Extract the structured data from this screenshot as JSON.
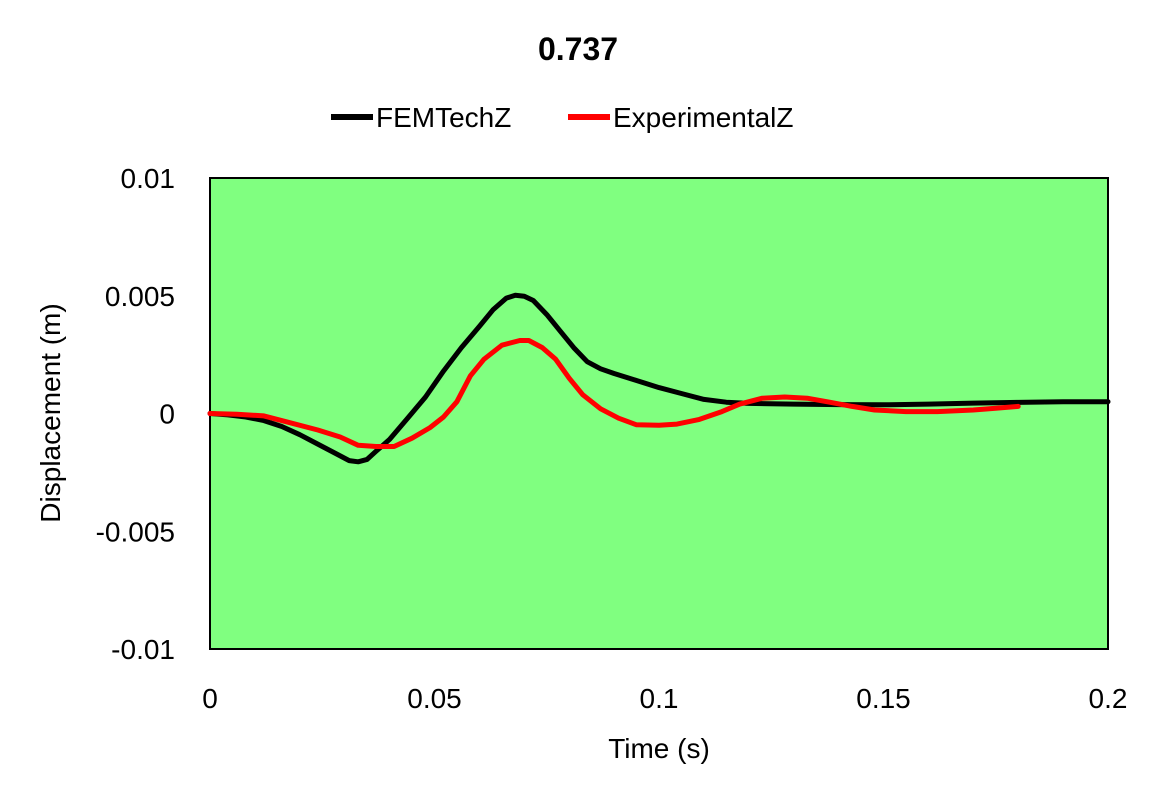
{
  "chart_data": {
    "type": "line",
    "title": "0.737",
    "xlabel": "Time (s)",
    "ylabel": "Displacement (m)",
    "xlim": [
      0,
      0.2
    ],
    "ylim": [
      -0.01,
      0.01
    ],
    "x_ticks": [
      "0",
      "0.05",
      "0.1",
      "0.15",
      "0.2"
    ],
    "y_ticks": [
      "0.01",
      "0.005",
      "0",
      "-0.005",
      "-0.01"
    ],
    "x_tick_values": [
      0,
      0.05,
      0.1,
      0.15,
      0.2
    ],
    "y_tick_values": [
      0.01,
      0.005,
      0,
      -0.005,
      -0.01
    ],
    "grid": false,
    "legend_position": "top",
    "plot_background": "#80ff80",
    "series": [
      {
        "name": "FEMTechZ",
        "color": "#000000",
        "points": [
          [
            0,
            0
          ],
          [
            0.004,
            -6e-05
          ],
          [
            0.008,
            -0.00015
          ],
          [
            0.012,
            -0.0003
          ],
          [
            0.016,
            -0.00055
          ],
          [
            0.02,
            -0.0009
          ],
          [
            0.024,
            -0.0013
          ],
          [
            0.028,
            -0.0017
          ],
          [
            0.031,
            -0.002
          ],
          [
            0.033,
            -0.00205
          ],
          [
            0.035,
            -0.00195
          ],
          [
            0.037,
            -0.0016
          ],
          [
            0.04,
            -0.0011
          ],
          [
            0.044,
            -0.0002
          ],
          [
            0.048,
            0.0007
          ],
          [
            0.052,
            0.0018
          ],
          [
            0.056,
            0.0028
          ],
          [
            0.06,
            0.0037
          ],
          [
            0.063,
            0.0044
          ],
          [
            0.066,
            0.0049
          ],
          [
            0.068,
            0.00502
          ],
          [
            0.07,
            0.00498
          ],
          [
            0.072,
            0.0048
          ],
          [
            0.075,
            0.0042
          ],
          [
            0.078,
            0.0035
          ],
          [
            0.081,
            0.0028
          ],
          [
            0.084,
            0.0022
          ],
          [
            0.087,
            0.0019
          ],
          [
            0.09,
            0.0017
          ],
          [
            0.095,
            0.0014
          ],
          [
            0.1,
            0.0011
          ],
          [
            0.105,
            0.00085
          ],
          [
            0.11,
            0.0006
          ],
          [
            0.115,
            0.00048
          ],
          [
            0.12,
            0.00043
          ],
          [
            0.13,
            0.0004
          ],
          [
            0.14,
            0.00038
          ],
          [
            0.15,
            0.00037
          ],
          [
            0.16,
            0.0004
          ],
          [
            0.17,
            0.00044
          ],
          [
            0.18,
            0.00047
          ],
          [
            0.19,
            0.0005
          ],
          [
            0.2,
            0.0005
          ]
        ]
      },
      {
        "name": "ExperimentalZ",
        "color": "#ff0000",
        "points": [
          [
            0,
            0
          ],
          [
            0.006,
            -3e-05
          ],
          [
            0.012,
            -0.0001
          ],
          [
            0.018,
            -0.0004
          ],
          [
            0.024,
            -0.0007
          ],
          [
            0.029,
            -0.001
          ],
          [
            0.033,
            -0.00135
          ],
          [
            0.037,
            -0.0014
          ],
          [
            0.041,
            -0.0014
          ],
          [
            0.045,
            -0.00105
          ],
          [
            0.049,
            -0.0006
          ],
          [
            0.052,
            -0.00015
          ],
          [
            0.055,
            0.0005
          ],
          [
            0.058,
            0.0016
          ],
          [
            0.061,
            0.0023
          ],
          [
            0.065,
            0.0029
          ],
          [
            0.069,
            0.0031
          ],
          [
            0.071,
            0.0031
          ],
          [
            0.074,
            0.0028
          ],
          [
            0.077,
            0.0023
          ],
          [
            0.08,
            0.0015
          ],
          [
            0.083,
            0.0008
          ],
          [
            0.087,
            0.0002
          ],
          [
            0.091,
            -0.0002
          ],
          [
            0.095,
            -0.00048
          ],
          [
            0.1,
            -0.0005
          ],
          [
            0.104,
            -0.00045
          ],
          [
            0.109,
            -0.00025
          ],
          [
            0.114,
            8e-05
          ],
          [
            0.118,
            0.0004
          ],
          [
            0.123,
            0.00065
          ],
          [
            0.128,
            0.0007
          ],
          [
            0.133,
            0.00065
          ],
          [
            0.138,
            0.00048
          ],
          [
            0.143,
            0.0003
          ],
          [
            0.148,
            0.00015
          ],
          [
            0.155,
            8e-05
          ],
          [
            0.162,
            8e-05
          ],
          [
            0.17,
            0.00015
          ],
          [
            0.175,
            0.00022
          ],
          [
            0.18,
            0.0003
          ]
        ]
      }
    ]
  }
}
